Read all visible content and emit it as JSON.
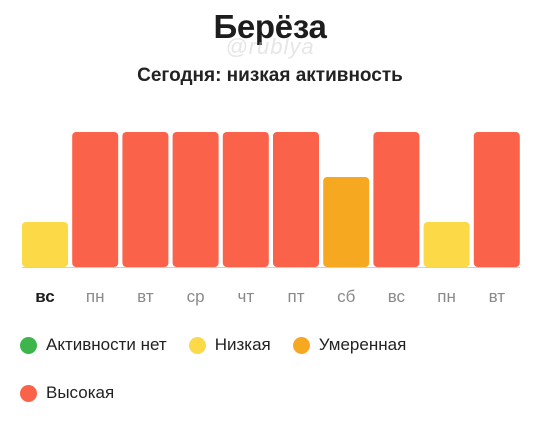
{
  "header": {
    "title": "Берёза",
    "watermark": "@rublya",
    "subtitle": "Сегодня: низкая активность"
  },
  "colors": {
    "none": "#3db54a",
    "low": "#fcd947",
    "moderate": "#f6a821",
    "high": "#fb624a",
    "baseline": "#cfcfcf",
    "day_label": "#8a8a8a",
    "day_label_active": "#1d1d1d"
  },
  "legend": [
    {
      "key": "none",
      "label": "Активности нет"
    },
    {
      "key": "low",
      "label": "Низкая"
    },
    {
      "key": "moderate",
      "label": "Умеренная"
    },
    {
      "key": "high",
      "label": "Высокая"
    }
  ],
  "chart_data": {
    "type": "bar",
    "categories": [
      "вс",
      "пн",
      "вт",
      "ср",
      "чт",
      "пт",
      "сб",
      "вс",
      "пн",
      "вт"
    ],
    "values": [
      1,
      3,
      3,
      3,
      3,
      3,
      2,
      3,
      1,
      3
    ],
    "levels": [
      "low",
      "high",
      "high",
      "high",
      "high",
      "high",
      "moderate",
      "high",
      "low",
      "high"
    ],
    "active_index": 0,
    "ylim": [
      0,
      3
    ],
    "legend_position": "bottom"
  }
}
